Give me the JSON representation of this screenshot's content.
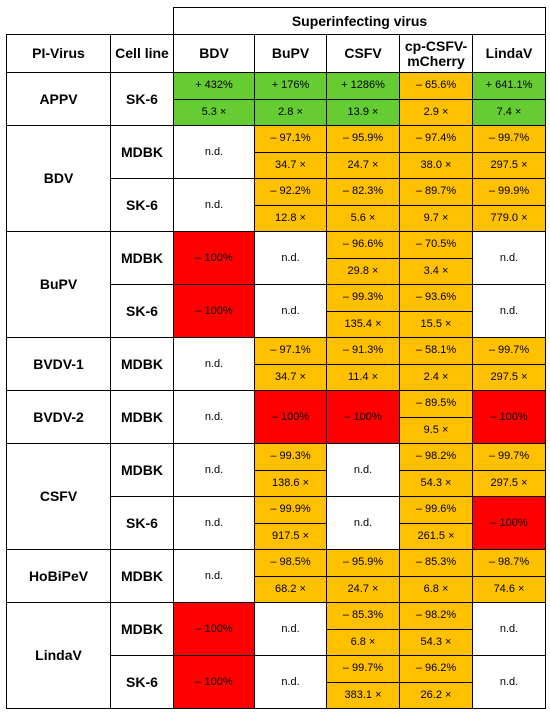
{
  "header": {
    "superinfecting": "Superinfecting virus",
    "pi_virus": "PI-Virus",
    "cell_line": "Cell line",
    "col_bdv": "BDV",
    "col_bupv": "BuPV",
    "col_csfv": "CSFV",
    "col_cp": "cp-CSFV-mCherry",
    "col_lindav": "LindaV"
  },
  "labels": {
    "nd": "n.d.",
    "minus100": "– 100%"
  },
  "colors": {
    "increase": "#66cc33",
    "decrease": "#ffc000",
    "complete_block": "#ff0000",
    "not_determined": "#ffffff"
  },
  "rows": {
    "appv": {
      "virus": "APPV",
      "cell": "SK-6",
      "bdv_p": "+ 432%",
      "bdv_f": "5.3 ×",
      "bupv_p": "+ 176%",
      "bupv_f": "2.8 ×",
      "csfv_p": "+ 1286%",
      "csfv_f": "13.9 ×",
      "cp_p": "– 65.6%",
      "cp_f": "2.9 ×",
      "lindav_p": "+ 641.1%",
      "lindav_f": "7.4 ×"
    },
    "bdv": {
      "virus": "BDV",
      "mdbk": {
        "cell": "MDBK",
        "bdv": "n.d.",
        "bupv_p": "– 97.1%",
        "bupv_f": "34.7 ×",
        "csfv_p": "– 95.9%",
        "csfv_f": "24.7 ×",
        "cp_p": "– 97.4%",
        "cp_f": "38.0 ×",
        "lindav_p": "– 99.7%",
        "lindav_f": "297.5 ×"
      },
      "sk6": {
        "cell": "SK-6",
        "bdv": "n.d.",
        "bupv_p": "– 92.2%",
        "bupv_f": "12.8 ×",
        "csfv_p": "– 82.3%",
        "csfv_f": "5.6 ×",
        "cp_p": "– 89.7%",
        "cp_f": "9.7 ×",
        "lindav_p": "– 99.9%",
        "lindav_f": "779.0 ×"
      }
    },
    "bupv": {
      "virus": "BuPV",
      "mdbk": {
        "cell": "MDBK",
        "bdv": "– 100%",
        "bupv": "n.d.",
        "csfv_p": "– 96.6%",
        "csfv_f": "29.8 ×",
        "cp_p": "– 70.5%",
        "cp_f": "3.4 ×",
        "lindav": "n.d."
      },
      "sk6": {
        "cell": "SK-6",
        "bdv": "– 100%",
        "bupv": "n.d.",
        "csfv_p": "– 99.3%",
        "csfv_f": "135.4 ×",
        "cp_p": "– 93.6%",
        "cp_f": "15.5 ×",
        "lindav": "n.d."
      }
    },
    "bvdv1": {
      "virus": "BVDV-1",
      "cell": "MDBK",
      "bdv": "n.d.",
      "bupv_p": "– 97.1%",
      "bupv_f": "34.7 ×",
      "csfv_p": "– 91.3%",
      "csfv_f": "11.4 ×",
      "cp_p": "– 58.1%",
      "cp_f": "2.4 ×",
      "lindav_p": "– 99.7%",
      "lindav_f": "297.5 ×"
    },
    "bvdv2": {
      "virus": "BVDV-2",
      "cell": "MDBK",
      "bdv": "n.d.",
      "bupv": "– 100%",
      "csfv": "– 100%",
      "cp_p": "– 89.5%",
      "cp_f": "9.5 ×",
      "lindav": "– 100%"
    },
    "csfv": {
      "virus": "CSFV",
      "mdbk": {
        "cell": "MDBK",
        "bdv": "n.d.",
        "bupv_p": "– 99.3%",
        "bupv_f": "138.6 ×",
        "csfv": "n.d.",
        "cp_p": "– 98.2%",
        "cp_f": "54.3 ×",
        "lindav_p": "– 99.7%",
        "lindav_f": "297.5 ×"
      },
      "sk6": {
        "cell": "SK-6",
        "bdv": "n.d.",
        "bupv_p": "– 99.9%",
        "bupv_f": "917.5 ×",
        "csfv": "n.d.",
        "cp_p": "– 99.6%",
        "cp_f": "261.5 ×",
        "lindav": "– 100%"
      }
    },
    "hobipev": {
      "virus": "HoBiPeV",
      "cell": "MDBK",
      "bdv": "n.d.",
      "bupv_p": "– 98.5%",
      "bupv_f": "68.2 ×",
      "csfv_p": "– 95.9%",
      "csfv_f": "24.7 ×",
      "cp_p": "– 85.3%",
      "cp_f": "6.8 ×",
      "lindav_p": "– 98.7%",
      "lindav_f": "74.6 ×"
    },
    "lindav": {
      "virus": "LindaV",
      "mdbk": {
        "cell": "MDBK",
        "bdv": "– 100%",
        "bupv": "n.d.",
        "csfv_p": "– 85.3%",
        "csfv_f": "6.8 ×",
        "cp_p": "– 98.2%",
        "cp_f": "54.3 ×",
        "lindav": "n.d."
      },
      "sk6": {
        "cell": "SK-6",
        "bdv": "– 100%",
        "bupv": "n.d.",
        "csfv_p": "– 99.7%",
        "csfv_f": "383.1 ×",
        "cp_p": "– 96.2%",
        "cp_f": "26.2 ×",
        "lindav": "n.d."
      }
    }
  }
}
